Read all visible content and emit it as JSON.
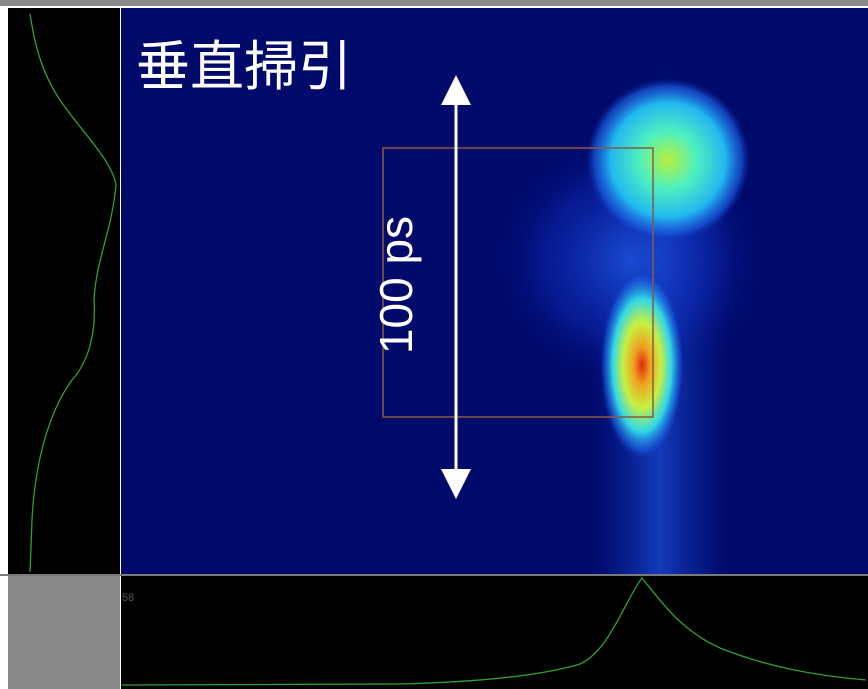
{
  "image": {
    "title": "垂直掃引",
    "scale_label": "100 ps"
  },
  "bottom_panel": {
    "label": "58"
  }
}
